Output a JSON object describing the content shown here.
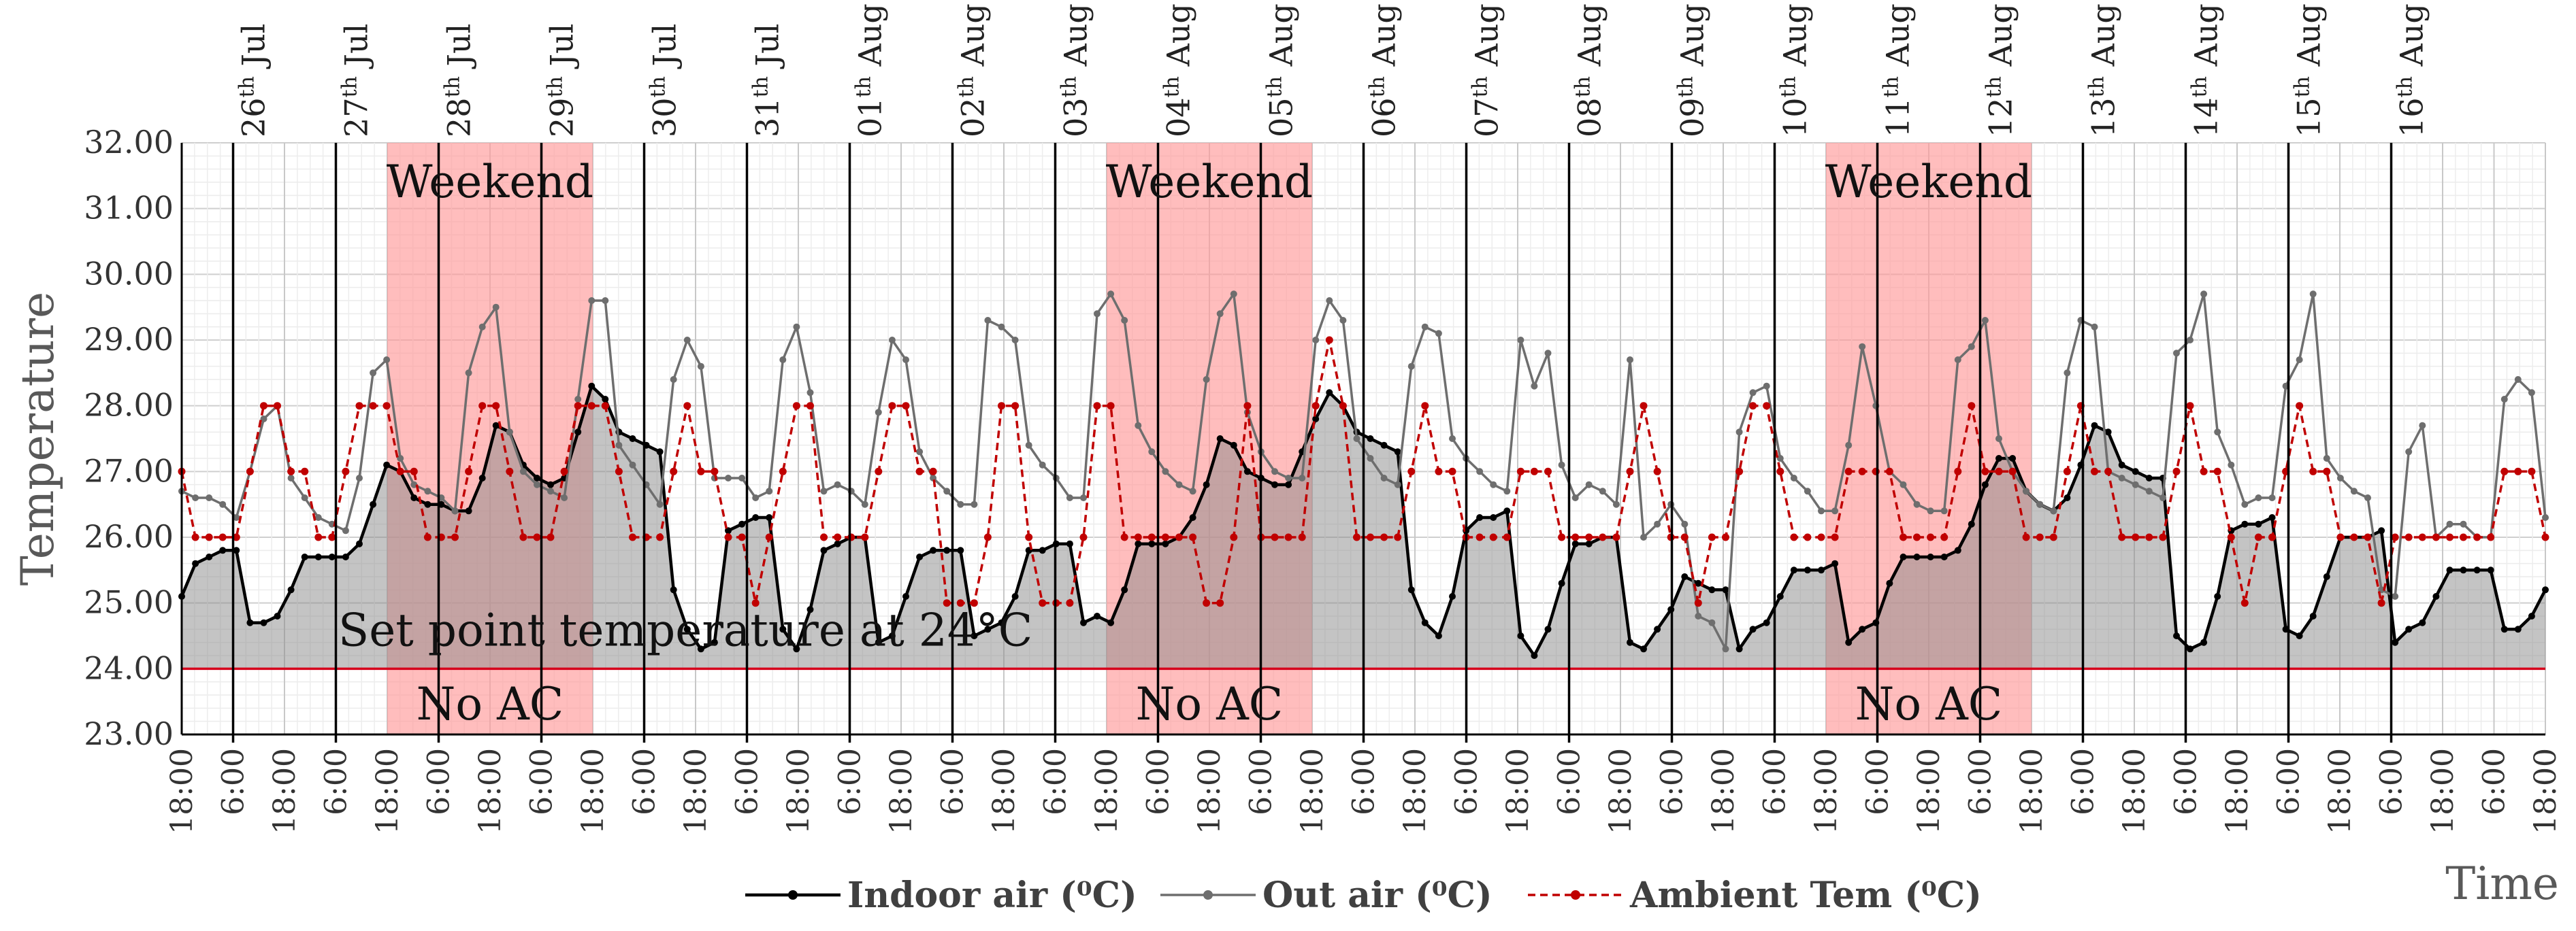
{
  "chart_data": {
    "type": "line",
    "title": "",
    "xlabel": "Time",
    "ylabel": "Temperature",
    "ylim": [
      23,
      32
    ],
    "y_ticks": [
      "23.00",
      "24.00",
      "25.00",
      "26.00",
      "27.00",
      "28.00",
      "29.00",
      "30.00",
      "31.00",
      "32.00"
    ],
    "time_ticks": [
      "18:00",
      "6:00",
      "18:00",
      "6:00",
      "18:00",
      "6:00",
      "18:00",
      "6:00",
      "18:00",
      "6:00",
      "18:00",
      "6:00",
      "18:00",
      "6:00",
      "18:00",
      "6:00",
      "18:00",
      "6:00",
      "18:00",
      "6:00",
      "18:00",
      "6:00",
      "18:00",
      "6:00",
      "18:00",
      "6:00",
      "18:00",
      "6:00",
      "18:00",
      "6:00",
      "18:00",
      "6:00",
      "18:00",
      "6:00",
      "18:00",
      "6:00",
      "18:00",
      "6:00",
      "18:00",
      "6:00",
      "18:00",
      "6:00",
      "18:00",
      "6:00",
      "18:00",
      "6:00",
      "18:00"
    ],
    "day_labels": [
      {
        "day": "26",
        "sup": "th",
        "month": " Jul"
      },
      {
        "day": "27",
        "sup": "th",
        "month": " Jul"
      },
      {
        "day": "28",
        "sup": "th",
        "month": " Jul"
      },
      {
        "day": "29",
        "sup": "th",
        "month": " Jul"
      },
      {
        "day": "30",
        "sup": "th",
        "month": " Jul"
      },
      {
        "day": "31",
        "sup": "th",
        "month": " Jul"
      },
      {
        "day": "01",
        "sup": "th",
        "month": " Aug"
      },
      {
        "day": "02",
        "sup": "th",
        "month": " Aug"
      },
      {
        "day": "03",
        "sup": "th",
        "month": " Aug"
      },
      {
        "day": "04",
        "sup": "th",
        "month": " Aug"
      },
      {
        "day": "05",
        "sup": "th",
        "month": " Aug"
      },
      {
        "day": "06",
        "sup": "th",
        "month": " Aug"
      },
      {
        "day": "07",
        "sup": "th",
        "month": " Aug"
      },
      {
        "day": "08",
        "sup": "th",
        "month": " Aug"
      },
      {
        "day": "09",
        "sup": "th",
        "month": " Aug"
      },
      {
        "day": "10",
        "sup": "th",
        "month": " Aug"
      },
      {
        "day": "11",
        "sup": "th",
        "month": " Aug"
      },
      {
        "day": "12",
        "sup": "th",
        "month": " Aug"
      },
      {
        "day": "13",
        "sup": "th",
        "month": " Aug"
      },
      {
        "day": "14",
        "sup": "th",
        "month": " Aug"
      },
      {
        "day": "15",
        "sup": "th",
        "month": " Aug"
      },
      {
        "day": "16",
        "sup": "th",
        "month": " Aug"
      }
    ],
    "weekend_periods": [
      {
        "start_day": 2,
        "end_day": 3,
        "label_top": "Weekend",
        "label_bottom": "No AC"
      },
      {
        "start_day": 9,
        "end_day": 10,
        "label_top": "Weekend",
        "label_bottom": "No AC"
      },
      {
        "start_day": 16,
        "end_day": 17,
        "label_top": "Weekend",
        "label_bottom": "No AC"
      }
    ],
    "setpoint": {
      "value": 24.0,
      "label": "Set point temperature at 24°C",
      "color": "#d6001c"
    },
    "series": [
      {
        "name": "Indoor air (⁰C)",
        "color": "#000000",
        "values": [
          25.1,
          25.6,
          25.7,
          25.8,
          25.8,
          24.7,
          24.7,
          24.8,
          25.2,
          25.7,
          25.7,
          25.7,
          25.7,
          25.9,
          26.5,
          27.1,
          27.0,
          26.6,
          26.5,
          26.5,
          26.4,
          26.4,
          26.9,
          27.7,
          27.6,
          27.1,
          26.9,
          26.8,
          26.9,
          27.6,
          28.3,
          28.1,
          27.6,
          27.5,
          27.4,
          27.3,
          25.2,
          24.6,
          24.3,
          24.4,
          26.1,
          26.2,
          26.3,
          26.3,
          24.6,
          24.3,
          24.9,
          25.8,
          25.9,
          26.0,
          26.0,
          24.4,
          24.5,
          25.1,
          25.7,
          25.8,
          25.8,
          25.8,
          24.5,
          24.6,
          24.7,
          25.1,
          25.8,
          25.8,
          25.9,
          25.9,
          24.7,
          24.8,
          24.7,
          25.2,
          25.9,
          25.9,
          25.9,
          26.0,
          26.3,
          26.8,
          27.5,
          27.4,
          27.0,
          26.9,
          26.8,
          26.8,
          27.3,
          27.8,
          28.2,
          28.0,
          27.6,
          27.5,
          27.4,
          27.3,
          25.2,
          24.7,
          24.5,
          25.1,
          26.1,
          26.3,
          26.3,
          26.4,
          24.5,
          24.2,
          24.6,
          25.3,
          25.9,
          25.9,
          26.0,
          26.0,
          24.4,
          24.3,
          24.6,
          24.9,
          25.4,
          25.3,
          25.2,
          25.2,
          24.3,
          24.6,
          24.7,
          25.1,
          25.5,
          25.5,
          25.5,
          25.6,
          24.4,
          24.6,
          24.7,
          25.3,
          25.7,
          25.7,
          25.7,
          25.7,
          25.8,
          26.2,
          26.8,
          27.2,
          27.2,
          26.7,
          26.5,
          26.4,
          26.6,
          27.1,
          27.7,
          27.6,
          27.1,
          27.0,
          26.9,
          26.9,
          24.5,
          24.3,
          24.4,
          25.1,
          26.1,
          26.2,
          26.2,
          26.3,
          24.6,
          24.5,
          24.8,
          25.4,
          26.0,
          26.0,
          26.0,
          26.1,
          24.4,
          24.6,
          24.7,
          25.1,
          25.5,
          25.5,
          25.5,
          25.5,
          24.6,
          24.6,
          24.8,
          25.2
        ]
      },
      {
        "name": "Out air (⁰C)",
        "color": "#6e6e6e",
        "values": [
          26.7,
          26.6,
          26.6,
          26.5,
          26.3,
          27.0,
          27.8,
          28.0,
          26.9,
          26.6,
          26.3,
          26.2,
          26.1,
          26.9,
          28.5,
          28.7,
          27.2,
          26.8,
          26.7,
          26.6,
          26.4,
          28.5,
          29.2,
          29.5,
          27.6,
          27.0,
          26.8,
          26.7,
          26.6,
          28.1,
          29.6,
          29.6,
          27.4,
          27.1,
          26.8,
          26.5,
          28.4,
          29.0,
          28.6,
          26.9,
          26.9,
          26.9,
          26.6,
          26.7,
          28.7,
          29.2,
          28.2,
          26.7,
          26.8,
          26.7,
          26.5,
          27.9,
          29.0,
          28.7,
          27.3,
          26.9,
          26.7,
          26.5,
          26.5,
          29.3,
          29.2,
          29.0,
          27.4,
          27.1,
          26.9,
          26.6,
          26.6,
          29.4,
          29.7,
          29.3,
          27.7,
          27.3,
          27.0,
          26.8,
          26.7,
          28.4,
          29.4,
          29.7,
          27.9,
          27.3,
          27.0,
          26.9,
          26.9,
          29.0,
          29.6,
          29.3,
          27.5,
          27.2,
          26.9,
          26.8,
          28.6,
          29.2,
          29.1,
          27.5,
          27.2,
          27.0,
          26.8,
          26.7,
          29.0,
          28.3,
          28.8,
          27.1,
          26.6,
          26.8,
          26.7,
          26.5,
          28.7,
          26.0,
          26.2,
          26.5,
          26.2,
          24.8,
          24.7,
          24.3,
          27.6,
          28.2,
          28.3,
          27.2,
          26.9,
          26.7,
          26.4,
          26.4,
          27.4,
          28.9,
          28.0,
          27.0,
          26.8,
          26.5,
          26.4,
          26.4,
          28.7,
          28.9,
          29.3,
          27.5,
          27.0,
          26.7,
          26.5,
          26.4,
          28.5,
          29.3,
          29.2,
          27.0,
          26.9,
          26.8,
          26.7,
          26.6,
          28.8,
          29.0,
          29.7,
          27.6,
          27.1,
          26.5,
          26.6,
          26.6,
          28.3,
          28.7,
          29.7,
          27.2,
          26.9,
          26.7,
          26.6,
          25.2,
          25.1,
          27.3,
          27.7,
          26.0,
          26.2,
          26.2,
          26.0,
          26.0,
          28.1,
          28.4,
          28.2,
          26.3
        ]
      },
      {
        "name": "Ambient Tem (⁰C)",
        "color": "#c00000",
        "values": [
          27.0,
          26.0,
          26.0,
          26.0,
          26.0,
          27.0,
          28.0,
          28.0,
          27.0,
          27.0,
          26.0,
          26.0,
          27.0,
          28.0,
          28.0,
          28.0,
          27.0,
          27.0,
          26.0,
          26.0,
          26.0,
          27.0,
          28.0,
          28.0,
          27.0,
          26.0,
          26.0,
          26.0,
          27.0,
          28.0,
          28.0,
          28.0,
          27.0,
          26.0,
          26.0,
          26.0,
          27.0,
          28.0,
          27.0,
          27.0,
          26.0,
          26.0,
          25.0,
          26.0,
          27.0,
          28.0,
          28.0,
          26.0,
          26.0,
          26.0,
          26.0,
          27.0,
          28.0,
          28.0,
          27.0,
          27.0,
          25.0,
          25.0,
          25.0,
          26.0,
          28.0,
          28.0,
          26.0,
          25.0,
          25.0,
          25.0,
          26.0,
          28.0,
          28.0,
          26.0,
          26.0,
          26.0,
          26.0,
          26.0,
          26.0,
          25.0,
          25.0,
          26.0,
          28.0,
          26.0,
          26.0,
          26.0,
          26.0,
          28.0,
          29.0,
          28.0,
          26.0,
          26.0,
          26.0,
          26.0,
          27.0,
          28.0,
          27.0,
          27.0,
          26.0,
          26.0,
          26.0,
          26.0,
          27.0,
          27.0,
          27.0,
          26.0,
          26.0,
          26.0,
          26.0,
          26.0,
          27.0,
          28.0,
          27.0,
          26.0,
          26.0,
          25.0,
          26.0,
          26.0,
          27.0,
          28.0,
          28.0,
          27.0,
          26.0,
          26.0,
          26.0,
          26.0,
          27.0,
          27.0,
          27.0,
          27.0,
          26.0,
          26.0,
          26.0,
          26.0,
          27.0,
          28.0,
          27.0,
          27.0,
          27.0,
          26.0,
          26.0,
          26.0,
          27.0,
          28.0,
          27.0,
          27.0,
          26.0,
          26.0,
          26.0,
          26.0,
          27.0,
          28.0,
          27.0,
          27.0,
          26.0,
          25.0,
          26.0,
          26.0,
          27.0,
          28.0,
          27.0,
          27.0,
          26.0,
          26.0,
          26.0,
          25.0,
          26.0,
          26.0,
          26.0,
          26.0,
          26.0,
          26.0,
          26.0,
          26.0,
          27.0,
          27.0,
          27.0,
          26.0
        ]
      }
    ],
    "legend": {
      "position": "bottom-center"
    }
  }
}
